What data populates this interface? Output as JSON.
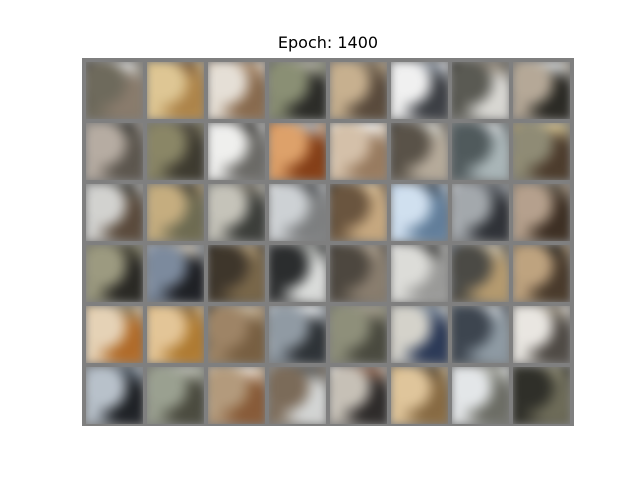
{
  "title": "Epoch: 1400",
  "grid": {
    "rows": 6,
    "cols": 8,
    "frame_color": "#7f7f7f",
    "tiles": [
      {
        "palette": [
          "#3d3d38",
          "#8a7b6a",
          "#6f6a5a",
          "#e2e2e2"
        ]
      },
      {
        "palette": [
          "#d7b46a",
          "#b18443",
          "#e0c68e",
          "#7c5a37"
        ]
      },
      {
        "palette": [
          "#cbb59b",
          "#8b6a4a",
          "#e6dfd5",
          "#a68463"
        ]
      },
      {
        "palette": [
          "#575a52",
          "#2c2c28",
          "#8a8f71",
          "#b6b4a5"
        ]
      },
      {
        "palette": [
          "#a18667",
          "#5a4a3a",
          "#c9b08b",
          "#7a6b58"
        ]
      },
      {
        "palette": [
          "#d8d8d8",
          "#3c3f45",
          "#f0f0f0",
          "#7e8793"
        ]
      },
      {
        "palette": [
          "#24231f",
          "#d8d7d2",
          "#5a5a52",
          "#9c8f7f"
        ]
      },
      {
        "palette": [
          "#7a7062",
          "#2b2a24",
          "#b6a895",
          "#d7dde2"
        ]
      },
      {
        "palette": [
          "#8c877e",
          "#5d564d",
          "#b7aca1",
          "#3a3a35"
        ]
      },
      {
        "palette": [
          "#6b6a54",
          "#3e3b2f",
          "#8b8663",
          "#4f4a3f"
        ]
      },
      {
        "palette": [
          "#cfd2d4",
          "#6b6a66",
          "#efefed",
          "#3b3a37"
        ]
      },
      {
        "palette": [
          "#c46a24",
          "#8b3e12",
          "#e3a063",
          "#a7b4c2"
        ]
      },
      {
        "palette": [
          "#efefef",
          "#9b7b5c",
          "#d6c0a6",
          "#f6f6f6"
        ]
      },
      {
        "palette": [
          "#2a2925",
          "#b6aa98",
          "#5a5247",
          "#d9d8d0"
        ]
      },
      {
        "palette": [
          "#6f7c7f",
          "#a8b5b8",
          "#4f5a5d",
          "#d4d8d9"
        ]
      },
      {
        "palette": [
          "#c3a35f",
          "#4e3c2b",
          "#8f8b73",
          "#e0c98f"
        ]
      },
      {
        "palette": [
          "#a6a9a8",
          "#5b4a3a",
          "#d2d2cf",
          "#3c3b35"
        ]
      },
      {
        "palette": [
          "#9c8a62",
          "#6e6b4f",
          "#c7ad7a",
          "#4a4538"
        ]
      },
      {
        "palette": [
          "#8c8f86",
          "#3c3e3a",
          "#c5c3b8",
          "#6d685c"
        ]
      },
      {
        "palette": [
          "#f1f2f2",
          "#7d7f80",
          "#cdd1d4",
          "#4c4f52"
        ]
      },
      {
        "palette": [
          "#2b2620",
          "#c8a77a",
          "#6c553c",
          "#e3c79b"
        ]
      },
      {
        "palette": [
          "#9ec0e4",
          "#5f7e9e",
          "#cfe0f1",
          "#3d4c5c"
        ]
      },
      {
        "palette": [
          "#d7dce2",
          "#2f3238",
          "#a3a8ad",
          "#5b6067"
        ]
      },
      {
        "palette": [
          "#8c7761",
          "#3e2f22",
          "#b7a08a",
          "#5a5346"
        ]
      },
      {
        "palette": [
          "#6c6c52",
          "#2a2924",
          "#9c9a7d",
          "#4d4a3a"
        ]
      },
      {
        "palette": [
          "#b8c2cf",
          "#1f2126",
          "#7b8a9f",
          "#d2c6b1"
        ]
      },
      {
        "palette": [
          "#1a1816",
          "#7a6646",
          "#3f362a",
          "#b29b74"
        ]
      },
      {
        "palette": [
          "#5b6063",
          "#d9dbd9",
          "#2b2d2e",
          "#a7aaa6"
        ]
      },
      {
        "palette": [
          "#2c2a26",
          "#8a7d6c",
          "#4e473e",
          "#b1a38f"
        ]
      },
      {
        "palette": [
          "#f4f4f2",
          "#9a9a98",
          "#dcdcd8",
          "#3a3a38"
        ]
      },
      {
        "palette": [
          "#6d7f99",
          "#b79a6a",
          "#4b4a44",
          "#d1c3a7"
        ]
      },
      {
        "palette": [
          "#7b6444",
          "#4a3a2a",
          "#c1a37b",
          "#2d2a25"
        ]
      },
      {
        "palette": [
          "#d6b57a",
          "#b66a22",
          "#e7d2b3",
          "#8a7a5a"
        ]
      },
      {
        "palette": [
          "#d8a45a",
          "#b47a2a",
          "#e6c591",
          "#8a6a3c"
        ]
      },
      {
        "palette": [
          "#1f1e1a",
          "#7a5f3e",
          "#a08462",
          "#cdbb9e"
        ]
      },
      {
        "palette": [
          "#cfd8df",
          "#2e3338",
          "#8f9aa4",
          "#f1f3f5"
        ]
      },
      {
        "palette": [
          "#6a6e5e",
          "#4a4a3e",
          "#8e8f78",
          "#a8a08d"
        ]
      },
      {
        "palette": [
          "#b9b8b1",
          "#2b3a5a",
          "#d4d2c9",
          "#6e7f95"
        ]
      },
      {
        "palette": [
          "#5a6a78",
          "#8d9aa4",
          "#3c4550",
          "#c7ced3"
        ]
      },
      {
        "palette": [
          "#c2bfb8",
          "#4f4a44",
          "#e9e6e0",
          "#8a8070"
        ]
      },
      {
        "palette": [
          "#7f8c98",
          "#1f2227",
          "#b7c1cb",
          "#4f5a66"
        ]
      },
      {
        "palette": [
          "#6d705e",
          "#4b4b3e",
          "#9aa08f",
          "#c1c3b7"
        ]
      },
      {
        "palette": [
          "#d8c7b2",
          "#8c5a34",
          "#b59a78",
          "#f0e6da"
        ]
      },
      {
        "palette": [
          "#a4a7a6",
          "#d2d4d3",
          "#7d6b57",
          "#5a5d5d"
        ]
      },
      {
        "palette": [
          "#f0f0f0",
          "#2e2b2a",
          "#c7c0b5",
          "#8a5c45"
        ]
      },
      {
        "palette": [
          "#c59a54",
          "#8a6a3e",
          "#e2c596",
          "#5a4a34"
        ]
      },
      {
        "palette": [
          "#c8ced2",
          "#6c6d64",
          "#e3e6e8",
          "#9a9c92"
        ]
      },
      {
        "palette": [
          "#47483c",
          "#6d6b56",
          "#2f2f28",
          "#8e8b72"
        ]
      }
    ]
  }
}
